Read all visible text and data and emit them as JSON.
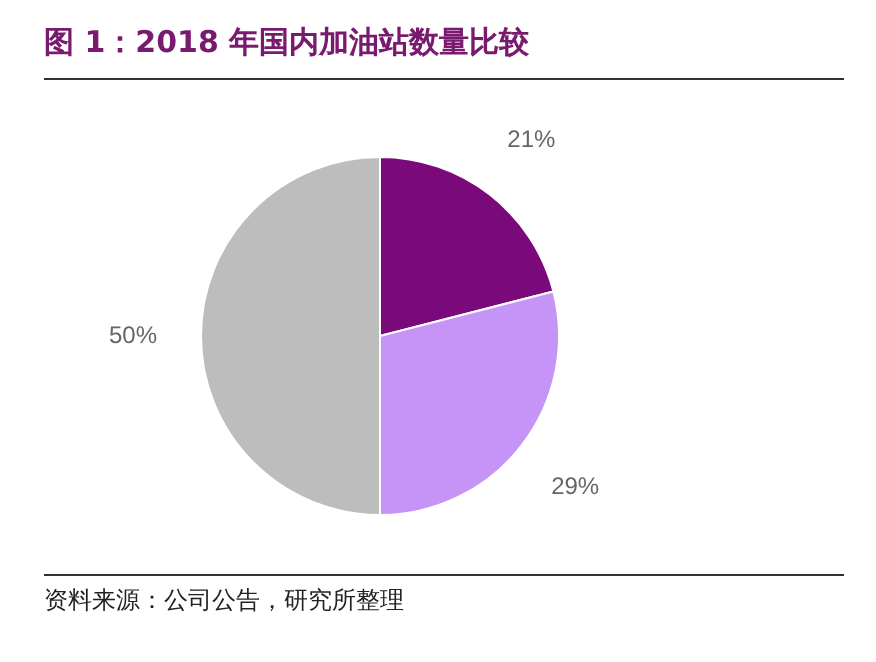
{
  "chart_data": {
    "type": "pie",
    "title": "图 1：2018 年国内加油站数量比较",
    "categories": [
      null,
      null,
      null
    ],
    "values": [
      21,
      29,
      50
    ],
    "colors": [
      "#7a0a7c",
      "#c693f6",
      "#bdbdbd"
    ],
    "value_labels": [
      "21%",
      "29%",
      "50%"
    ],
    "legend": false,
    "annotations": [
      "资料来源：公司公告，研究所整理"
    ]
  }
}
